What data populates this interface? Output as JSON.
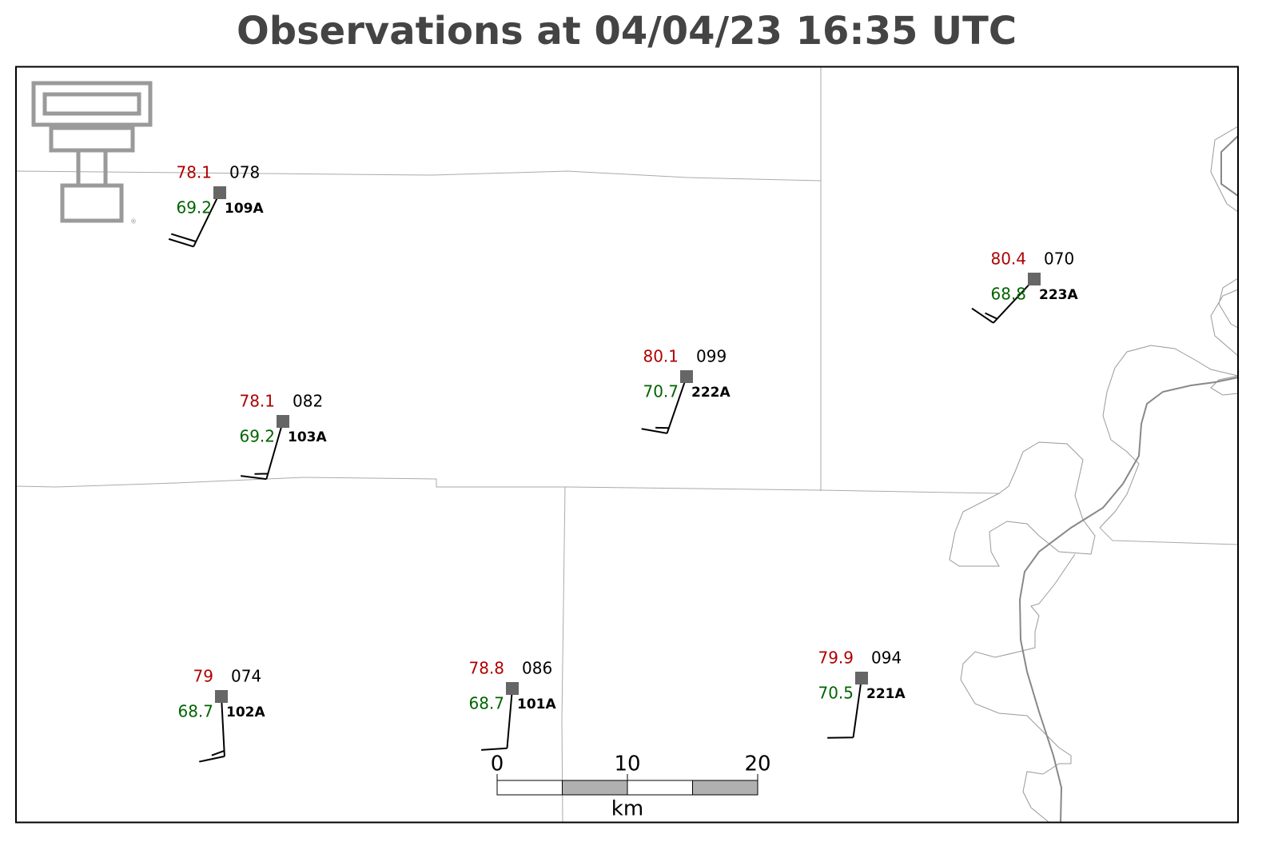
{
  "title": "Observations at 04/04/23 16:35 UTC",
  "stations": [
    {
      "id": "109A",
      "temperature": 78.1,
      "dewpoint": 69.2,
      "pressure": "078",
      "wind_dir": 206,
      "wind_speed": 20
    },
    {
      "id": "103A",
      "temperature": 78.1,
      "dewpoint": 69.2,
      "pressure": "082",
      "wind_dir": 196,
      "wind_speed": 15
    },
    {
      "id": "222A",
      "temperature": 80.1,
      "dewpoint": 70.7,
      "pressure": "099",
      "wind_dir": 199,
      "wind_speed": 15
    },
    {
      "id": "223A",
      "temperature": 80.4,
      "dewpoint": 68.8,
      "pressure": "070",
      "wind_dir": 223,
      "wind_speed": 15
    },
    {
      "id": "102A",
      "temperature": 79.0,
      "dewpoint": 68.7,
      "pressure": "074",
      "wind_dir": 177,
      "wind_speed": 15
    },
    {
      "id": "101A",
      "temperature": 78.8,
      "dewpoint": 68.7,
      "pressure": "086",
      "wind_dir": 185,
      "wind_speed": 10
    },
    {
      "id": "221A",
      "temperature": 79.9,
      "dewpoint": 70.5,
      "pressure": "094",
      "wind_dir": 188,
      "wind_speed": 10
    }
  ],
  "scale_bar": {
    "ticks": [
      0,
      10,
      20
    ],
    "unit": "km"
  },
  "colors": {
    "temperature": "#b00000",
    "dewpoint": "#006400",
    "station": "#666666"
  }
}
